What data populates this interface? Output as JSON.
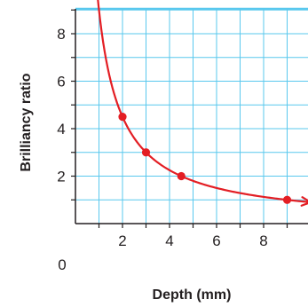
{
  "chart_data": {
    "type": "line",
    "title": "",
    "xlabel": "Depth (mm)",
    "ylabel": "Brilliancy ratio",
    "xlim": [
      0,
      10
    ],
    "ylim": [
      0,
      10
    ],
    "x_ticks": [
      2,
      4,
      6,
      8
    ],
    "y_ticks": [
      2,
      4,
      6,
      8
    ],
    "origin_label": "0",
    "grid": true,
    "minor_grid_step": 1,
    "line_color": "#e31e24",
    "grid_color": "#59c8ee",
    "axis_color": "#231f20",
    "series": [
      {
        "points": [
          {
            "x": 2,
            "y": 4.5
          },
          {
            "x": 3,
            "y": 3
          },
          {
            "x": 4.5,
            "y": 2
          },
          {
            "x": 9,
            "y": 1
          }
        ],
        "curve_from_x": 0.85,
        "curve_to_x": 10
      }
    ]
  }
}
